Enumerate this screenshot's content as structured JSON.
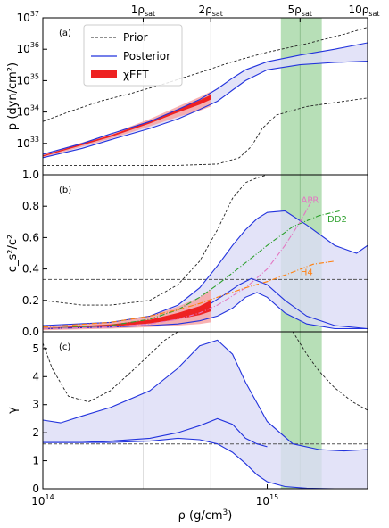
{
  "figure": {
    "xlabel_main": "ρ (g/cm",
    "xlabel_sup": "3",
    "xlabel_tail": ")",
    "xtick_base": "10",
    "xticks": [
      {
        "value": 100000000000000.0,
        "exp": "14"
      },
      {
        "value": 1000000000000000.0,
        "exp": "15"
      }
    ],
    "top_ticks": [
      {
        "value": 280000000000000.0,
        "num": "1",
        "sym": "ρ",
        "sub": "sat"
      },
      {
        "value": 560000000000000.0,
        "num": "2",
        "sym": "ρ",
        "sub": "sat"
      },
      {
        "value": 1400000000000000.0,
        "num": "5",
        "sym": "ρ",
        "sub": "sat"
      },
      {
        "value": 2800000000000000.0,
        "num": "10",
        "sym": "ρ",
        "sub": "sat"
      }
    ],
    "green_band": [
      1150000000000000.0,
      1750000000000000.0
    ],
    "green_line": 1400000000000000.0,
    "colors": {
      "prior": "#222222",
      "posterior": "#2233dd",
      "posterior_fill": "#dcdcf6",
      "eft": "#ee2222",
      "eft_light": "#f7a5a5",
      "green": "#9fd49f",
      "gray": "#555555",
      "dd2": "#2ca02c",
      "apr": "#e377c2",
      "h4": "#ff7f0e"
    }
  },
  "legend": {
    "prior": "Prior",
    "posterior": "Posterior",
    "eft": "χEFT"
  },
  "chart_data": [
    {
      "type": "area",
      "panel_label": "(a)",
      "ylabel": "p (dyn/cm²)",
      "yscale": "log",
      "xscale": "log",
      "xlim": [
        100000000000000.0,
        2800000000000000.0
      ],
      "ylim": [
        1e+32,
        1e+37
      ],
      "ytick_labels": [
        {
          "value": 1e+33,
          "exp": "33"
        },
        {
          "value": 1e+34,
          "exp": "34"
        },
        {
          "value": 1e+35,
          "exp": "35"
        },
        {
          "value": 1e+36,
          "exp": "36"
        },
        {
          "value": 1e+37,
          "exp": "37"
        }
      ],
      "series": [
        {
          "name": "Prior",
          "role": "prior_upper",
          "x": [
            100000000000000.0,
            130000000000000.0,
            180000000000000.0,
            250000000000000.0,
            350000000000000.0,
            500000000000000.0,
            700000000000000.0,
            1000000000000000.0,
            1500000000000000.0,
            2200000000000000.0,
            2800000000000000.0
          ],
          "y": [
            5e+33,
            1e+34,
            2.2e+34,
            4e+34,
            8e+34,
            1.8e+35,
            4e+35,
            8e+35,
            1.5e+36,
            3e+36,
            5e+36
          ]
        },
        {
          "name": "Prior",
          "role": "prior_lower",
          "x": [
            100000000000000.0,
            200000000000000.0,
            400000000000000.0,
            600000000000000.0,
            750000000000000.0,
            850000000000000.0,
            950000000000000.0,
            1100000000000000.0,
            1500000000000000.0,
            2200000000000000.0,
            2800000000000000.0
          ],
          "y": [
            2e+32,
            2e+32,
            2e+32,
            2.2e+32,
            3.5e+32,
            8e+32,
            3e+33,
            8e+33,
            1.5e+34,
            2.2e+34,
            2.8e+34
          ]
        },
        {
          "name": "Posterior",
          "role": "posterior_upper",
          "x": [
            100000000000000.0,
            150000000000000.0,
            200000000000000.0,
            300000000000000.0,
            400000000000000.0,
            500000000000000.0,
            600000000000000.0,
            700000000000000.0,
            800000000000000.0,
            1000000000000000.0,
            1400000000000000.0,
            2000000000000000.0,
            2800000000000000.0
          ],
          "y": [
            4.5e+32,
            1e+33,
            2e+33,
            5e+33,
            1.2e+34,
            2.5e+34,
            5.5e+34,
            1.2e+35,
            2.2e+35,
            4e+35,
            6.5e+35,
            1e+36,
            1.6e+36
          ]
        },
        {
          "name": "Posterior",
          "role": "posterior_lower",
          "x": [
            100000000000000.0,
            150000000000000.0,
            200000000000000.0,
            300000000000000.0,
            400000000000000.0,
            500000000000000.0,
            600000000000000.0,
            700000000000000.0,
            800000000000000.0,
            1000000000000000.0,
            1400000000000000.0,
            2000000000000000.0,
            2800000000000000.0
          ],
          "y": [
            3.5e+32,
            7e+32,
            1.3e+33,
            3e+33,
            6e+33,
            1.2e+34,
            2.2e+34,
            5e+34,
            1e+35,
            2.2e+35,
            3.2e+35,
            3.8e+35,
            4.2e+35
          ]
        },
        {
          "name": "χEFT",
          "role": "eft_upper",
          "x": [
            100000000000000.0,
            200000000000000.0,
            300000000000000.0,
            400000000000000.0,
            500000000000000.0,
            560000000000000.0
          ],
          "y": [
            4.5e+32,
            2e+33,
            6e+33,
            1.5e+34,
            3e+34,
            4.5e+34
          ]
        },
        {
          "name": "χEFT",
          "role": "eft_lower",
          "x": [
            100000000000000.0,
            200000000000000.0,
            300000000000000.0,
            400000000000000.0,
            500000000000000.0,
            560000000000000.0
          ],
          "y": [
            3.5e+32,
            1.4e+33,
            3.5e+33,
            7e+33,
            1.1e+34,
            1.5e+34
          ]
        }
      ]
    },
    {
      "type": "area",
      "panel_label": "(b)",
      "ylabel": "c_s²/c²",
      "yscale": "linear",
      "xscale": "log",
      "xlim": [
        100000000000000.0,
        2800000000000000.0
      ],
      "ylim": [
        0,
        1
      ],
      "ytick_labels": [
        "0.0",
        "0.2",
        "0.4",
        "0.6",
        "0.8",
        "1.0"
      ],
      "hline": 0.3333,
      "annotations": [
        {
          "text": "APR",
          "x": 1550000000000000.0,
          "y": 0.82
        },
        {
          "text": "DD2",
          "x": 2050000000000000.0,
          "y": 0.7
        },
        {
          "text": "H4",
          "x": 1500000000000000.0,
          "y": 0.36
        }
      ],
      "series": [
        {
          "name": "Prior",
          "role": "prior_upper",
          "x": [
            100000000000000.0,
            150000000000000.0,
            200000000000000.0,
            300000000000000.0,
            400000000000000.0,
            500000000000000.0,
            600000000000000.0,
            700000000000000.0,
            800000000000000.0,
            900000000000000.0,
            1000000000000000.0,
            1200000000000000.0,
            1500000000000000.0
          ],
          "y": [
            0.2,
            0.17,
            0.17,
            0.2,
            0.3,
            0.45,
            0.65,
            0.85,
            0.95,
            0.98,
            1.0,
            1.0,
            1.0
          ]
        },
        {
          "name": "Posterior",
          "role": "posterior_upper",
          "x": [
            100000000000000.0,
            200000000000000.0,
            300000000000000.0,
            400000000000000.0,
            500000000000000.0,
            600000000000000.0,
            700000000000000.0,
            800000000000000.0,
            900000000000000.0,
            1000000000000000.0,
            1200000000000000.0,
            1500000000000000.0,
            2000000000000000.0,
            2500000000000000.0,
            2800000000000000.0
          ],
          "y": [
            0.04,
            0.06,
            0.1,
            0.17,
            0.28,
            0.42,
            0.55,
            0.65,
            0.72,
            0.76,
            0.77,
            0.68,
            0.55,
            0.5,
            0.55
          ]
        },
        {
          "name": "Posterior",
          "role": "posterior_lower",
          "x": [
            100000000000000.0,
            200000000000000.0,
            300000000000000.0,
            400000000000000.0,
            500000000000000.0,
            600000000000000.0,
            700000000000000.0,
            800000000000000.0,
            900000000000000.0,
            1000000000000000.0,
            1200000000000000.0,
            1500000000000000.0,
            2000000000000000.0,
            2500000000000000.0,
            2800000000000000.0
          ],
          "y": [
            0.02,
            0.03,
            0.04,
            0.05,
            0.07,
            0.1,
            0.15,
            0.22,
            0.25,
            0.22,
            0.12,
            0.05,
            0.02,
            0.02,
            0.02
          ]
        },
        {
          "name": "Posterior",
          "role": "posterior_median",
          "x": [
            560000000000000.0,
            650000000000000.0,
            750000000000000.0,
            850000000000000.0,
            1000000000000000.0,
            1200000000000000.0,
            1500000000000000.0,
            2000000000000000.0,
            2800000000000000.0
          ],
          "y": [
            0.18,
            0.24,
            0.3,
            0.34,
            0.3,
            0.2,
            0.1,
            0.04,
            0.02
          ]
        },
        {
          "name": "DD2",
          "role": "model",
          "x": [
            100000000000000.0,
            200000000000000.0,
            300000000000000.0,
            400000000000000.0,
            500000000000000.0,
            600000000000000.0,
            800000000000000.0,
            1000000000000000.0,
            1300000000000000.0,
            1700000000000000.0,
            2100000000000000.0
          ],
          "y": [
            0.02,
            0.04,
            0.08,
            0.14,
            0.22,
            0.3,
            0.44,
            0.55,
            0.67,
            0.74,
            0.77
          ]
        },
        {
          "name": "APR",
          "role": "model",
          "x": [
            100000000000000.0,
            200000000000000.0,
            300000000000000.0,
            400000000000000.0,
            500000000000000.0,
            600000000000000.0,
            800000000000000.0,
            1000000000000000.0,
            1200000000000000.0,
            1400000000000000.0,
            1600000000000000.0
          ],
          "y": [
            0.02,
            0.03,
            0.05,
            0.08,
            0.12,
            0.17,
            0.28,
            0.4,
            0.55,
            0.7,
            0.85
          ]
        },
        {
          "name": "H4",
          "role": "model",
          "x": [
            100000000000000.0,
            200000000000000.0,
            300000000000000.0,
            400000000000000.0,
            500000000000000.0,
            600000000000000.0,
            800000000000000.0,
            1000000000000000.0,
            1300000000000000.0,
            1600000000000000.0,
            2000000000000000.0
          ],
          "y": [
            0.03,
            0.06,
            0.1,
            0.14,
            0.18,
            0.22,
            0.28,
            0.32,
            0.38,
            0.43,
            0.45
          ]
        },
        {
          "name": "χEFT",
          "role": "eft_upper",
          "x": [
            100000000000000.0,
            200000000000000.0,
            300000000000000.0,
            400000000000000.0,
            500000000000000.0,
            560000000000000.0
          ],
          "y": [
            0.03,
            0.06,
            0.1,
            0.16,
            0.22,
            0.27
          ]
        },
        {
          "name": "χEFT",
          "role": "eft_lower",
          "x": [
            100000000000000.0,
            200000000000000.0,
            300000000000000.0,
            400000000000000.0,
            500000000000000.0,
            560000000000000.0
          ],
          "y": [
            0.01,
            0.02,
            0.03,
            0.04,
            0.05,
            0.06
          ]
        }
      ]
    },
    {
      "type": "area",
      "panel_label": "(c)",
      "ylabel": "γ",
      "yscale": "linear",
      "xscale": "log",
      "xlim": [
        100000000000000.0,
        2800000000000000.0
      ],
      "ylim": [
        0,
        5.6
      ],
      "ytick_labels": [
        "0",
        "1",
        "2",
        "3",
        "4",
        "5"
      ],
      "hline": 1.6,
      "series": [
        {
          "name": "Prior",
          "role": "prior_upper_left",
          "x": [
            100000000000000.0,
            110000000000000.0,
            130000000000000.0,
            160000000000000.0,
            200000000000000.0,
            250000000000000.0,
            300000000000000.0,
            350000000000000.0,
            400000000000000.0
          ],
          "y": [
            5.2,
            4.3,
            3.3,
            3.1,
            3.5,
            4.2,
            4.8,
            5.3,
            5.8
          ]
        },
        {
          "name": "Prior",
          "role": "prior_upper_right",
          "x": [
            1300000000000000.0,
            1500000000000000.0,
            1700000000000000.0,
            2000000000000000.0,
            2400000000000000.0,
            2800000000000000.0
          ],
          "y": [
            5.8,
            4.8,
            4.2,
            3.6,
            3.1,
            2.8
          ]
        },
        {
          "name": "Posterior",
          "role": "posterior_upper",
          "x": [
            100000000000000.0,
            120000000000000.0,
            150000000000000.0,
            200000000000000.0,
            300000000000000.0,
            400000000000000.0,
            500000000000000.0,
            600000000000000.0,
            700000000000000.0,
            800000000000000.0,
            1000000000000000.0,
            1300000000000000.0,
            1700000000000000.0,
            2200000000000000.0,
            2800000000000000.0
          ],
          "y": [
            2.45,
            2.35,
            2.6,
            2.9,
            3.5,
            4.3,
            5.1,
            5.3,
            4.8,
            3.8,
            2.4,
            1.6,
            1.4,
            1.35,
            1.4
          ]
        },
        {
          "name": "Posterior",
          "role": "posterior_lower",
          "x": [
            100000000000000.0,
            200000000000000.0,
            300000000000000.0,
            400000000000000.0,
            500000000000000.0,
            600000000000000.0,
            700000000000000.0,
            800000000000000.0,
            900000000000000.0,
            1000000000000000.0,
            1200000000000000.0,
            1500000000000000.0,
            2000000000000000.0,
            2800000000000000.0
          ],
          "y": [
            1.65,
            1.65,
            1.7,
            1.8,
            1.75,
            1.6,
            1.3,
            0.9,
            0.5,
            0.25,
            0.08,
            0.02,
            0.0,
            0.0
          ]
        },
        {
          "name": "Posterior",
          "role": "posterior_median",
          "x": [
            100000000000000.0,
            150000000000000.0,
            200000000000000.0,
            300000000000000.0,
            400000000000000.0,
            500000000000000.0,
            600000000000000.0,
            700000000000000.0,
            800000000000000.0,
            900000000000000.0,
            1000000000000000.0
          ],
          "y": [
            1.65,
            1.65,
            1.7,
            1.8,
            2.0,
            2.25,
            2.5,
            2.3,
            1.8,
            1.6,
            1.5
          ]
        }
      ]
    }
  ]
}
